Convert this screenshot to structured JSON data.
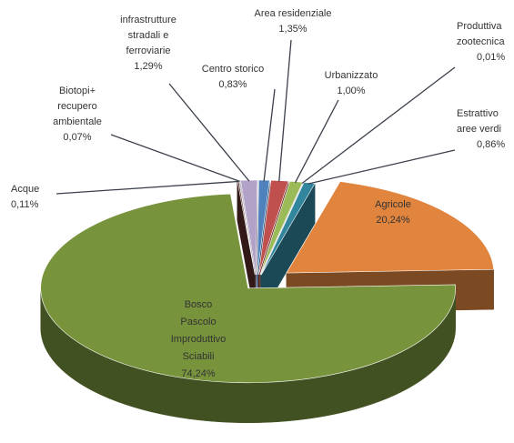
{
  "chart_data": {
    "type": "pie3d",
    "categories": [
      "Agricole",
      "Bosco\nPascolo\nImproduttivo\nSciabili",
      "Acque",
      "Biotopi+\nrecupero\nambientale",
      "infrastrutture\nstradali e\nferroviarie",
      "Centro storico",
      "Area residenziale",
      "Urbanizzato",
      "Produttiva\nzootecnica",
      "Estrattivo\naree verdi"
    ],
    "values": [
      20.24,
      74.24,
      0.11,
      0.07,
      1.29,
      0.83,
      1.35,
      1.0,
      0.01,
      0.86
    ],
    "value_labels": [
      "20,24%",
      "74,24%",
      "0,11%",
      "0,07%",
      "1,29%",
      "0,83%",
      "1,35%",
      "1,00%",
      "0,01%",
      "0,86%"
    ],
    "colors": [
      "#e0843e",
      "#77933c",
      "#5a2e2a",
      "#6b5a86",
      "#b3a2c7",
      "#4f81bd",
      "#c0504d",
      "#9bbb59",
      "#8064a2",
      "#31859c"
    ]
  }
}
